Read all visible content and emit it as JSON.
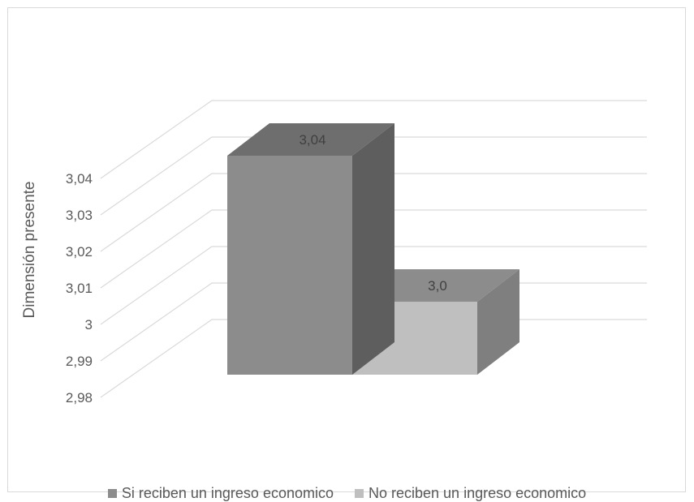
{
  "chart_data": {
    "type": "bar",
    "ylabel": "Dimensión presente",
    "ylim": [
      2.98,
      3.04
    ],
    "ticks": [
      "2,98",
      "2,99",
      "3",
      "3,01",
      "3,02",
      "3,03",
      "3,04"
    ],
    "grid": true,
    "legend_position": "bottom",
    "series": [
      {
        "name": "Si reciben un ingreso economico",
        "value": 3.04,
        "label": "3,04",
        "color": "#8c8c8c"
      },
      {
        "name": "No reciben un ingreso economico",
        "value": 3.0,
        "label": "3,0",
        "color": "#bfbfbf"
      }
    ]
  }
}
